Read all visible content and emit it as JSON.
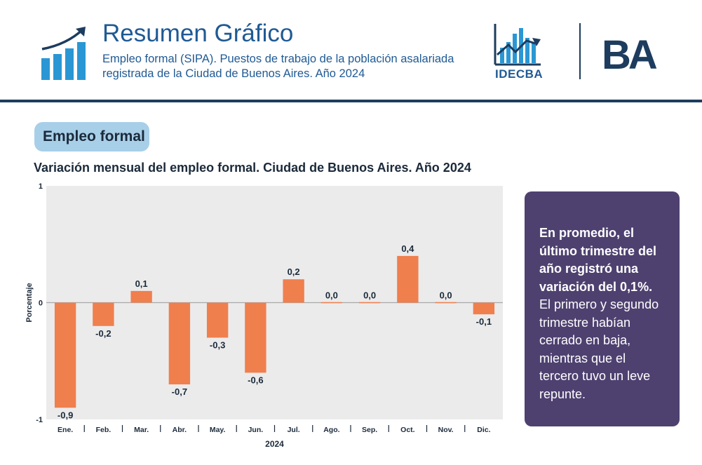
{
  "header": {
    "title": "Resumen Gráfico",
    "subtitle": "Empleo formal (SIPA). Puestos de trabajo de la población asalariada registrada de la Ciudad de Buenos Aires. Año 2024",
    "org_name": "IDECBA",
    "city_logo_text": "BA",
    "colors": {
      "title": "#1f5a94",
      "rule": "#1d3c5e",
      "city_logo": "#1d3c5e",
      "icon": "#2a97d4"
    }
  },
  "section": {
    "label": "Empleo formal",
    "color": "#a8cfe8"
  },
  "callout": {
    "bold_text": "En promedio, el último trimestre del año registró una variación del 0,1%.",
    "text": " El primero y segundo trimestre habían cerrado en baja, mientras que el tercero tuvo un leve repunte.",
    "color": "#4e4170"
  },
  "chart_data": {
    "type": "bar",
    "title": "Variación mensual del empleo formal. Ciudad de Buenos Aires. Año 2024",
    "xlabel": "2024",
    "ylabel": "Porcentaje",
    "categories": [
      "Ene.",
      "Feb.",
      "Mar.",
      "Abr.",
      "May.",
      "Jun.",
      "Jul.",
      "Ago.",
      "Sep.",
      "Oct.",
      "Nov.",
      "Dic."
    ],
    "values": [
      -0.9,
      -0.2,
      0.1,
      -0.7,
      -0.3,
      -0.6,
      0.2,
      0.0,
      0.0,
      0.4,
      0.0,
      -0.1
    ],
    "value_labels": [
      "-0,9",
      "-0,2",
      "0,1",
      "-0,7",
      "-0,3",
      "-0,6",
      "0,2",
      "0,0",
      "0,0",
      "0,4",
      "0,0",
      "-0,1"
    ],
    "ylim": [
      -1,
      1
    ],
    "yticks": [
      1,
      0,
      -1
    ],
    "ytick_labels": [
      "1",
      "0",
      "-1"
    ],
    "grid": false,
    "bar_color": "#f07f4e",
    "plot_background": "#ebebeb"
  }
}
